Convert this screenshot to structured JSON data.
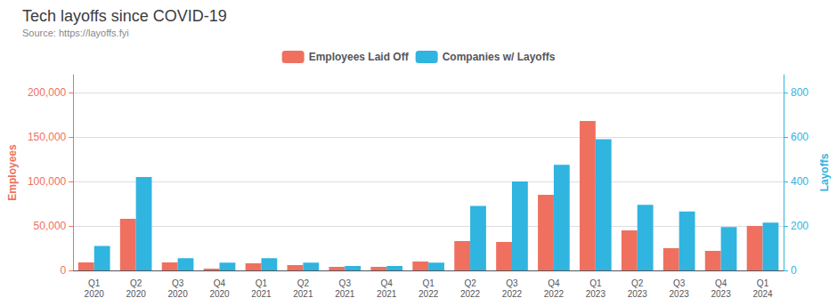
{
  "chart_data": {
    "type": "bar",
    "title": "Tech layoffs since COVID-19",
    "subtitle": "Source: https://layoffs.fyi",
    "categories": [
      "Q1\n2020",
      "Q2\n2020",
      "Q3\n2020",
      "Q4\n2020",
      "Q1\n2021",
      "Q2\n2021",
      "Q3\n2021",
      "Q4\n2021",
      "Q1\n2022",
      "Q2\n2022",
      "Q3\n2022",
      "Q4\n2022",
      "Q1\n2023",
      "Q2\n2023",
      "Q3\n2023",
      "Q4\n2023",
      "Q1\n2024"
    ],
    "series": [
      {
        "name": "Employees Laid Off",
        "color": "#F07060",
        "values": [
          9000,
          58000,
          9000,
          2000,
          8000,
          6000,
          4000,
          4000,
          10000,
          33000,
          32000,
          85000,
          168000,
          45000,
          25000,
          22000,
          50000
        ]
      },
      {
        "name": "Companies w/ Layoffs",
        "color": "#30B4E0",
        "axis": "y2",
        "values": [
          110,
          420,
          55,
          35,
          55,
          35,
          20,
          20,
          35,
          290,
          400,
          475,
          590,
          295,
          265,
          195,
          215
        ]
      }
    ],
    "ylabel": "Employees",
    "y2label": "Layoffs",
    "ylim": [
      0,
      220000
    ],
    "yticks": [
      0,
      {
        "value": 50000,
        "label": "50,000"
      },
      {
        "value": 100000,
        "label": "100,000"
      },
      {
        "value": 150000,
        "label": "150,000"
      },
      {
        "value": 200000,
        "label": "200,000"
      }
    ],
    "y2lim": [
      0,
      880
    ],
    "y2ticks": [
      0,
      200,
      400,
      600,
      800
    ],
    "grid": true,
    "legend": "top"
  }
}
